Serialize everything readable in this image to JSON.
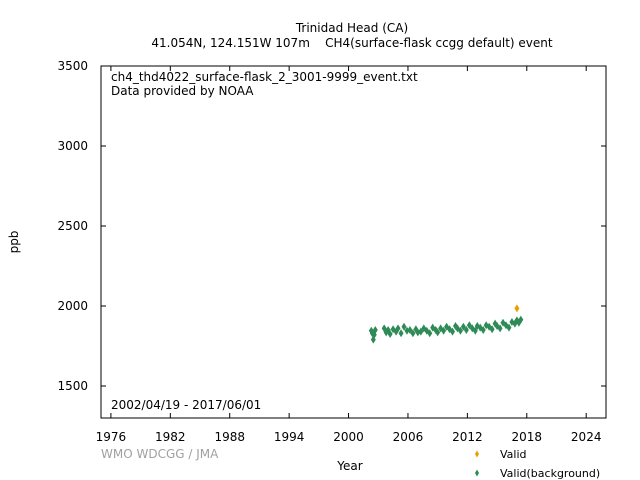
{
  "chart_data": {
    "type": "scatter",
    "title": "Trinidad Head (CA)",
    "subtitle": "41.054N, 124.151W 107m    CH4(surface-flask ccgg default) event",
    "file_note": "ch4_thd4022_surface-flask_2_3001-9999_event.txt",
    "provider_note": "Data provided by NOAA",
    "date_range": "2002/04/19 - 2017/06/01",
    "credit": "WMO WDCGG / JMA",
    "xlabel": "Year",
    "ylabel": "ppb",
    "xlim": [
      1975,
      2026
    ],
    "ylim": [
      1300,
      3500
    ],
    "x_ticks": [
      "1976",
      "1982",
      "1988",
      "1994",
      "2000",
      "2006",
      "2012",
      "2018",
      "2024"
    ],
    "y_ticks": [
      "1500",
      "2000",
      "2500",
      "3000",
      "3500"
    ],
    "legend_position": "bottom-right",
    "series": [
      {
        "name": "Valid",
        "color": "#e8a000",
        "x": [
          2017.0
        ],
        "y": [
          1985
        ]
      },
      {
        "name": "Valid(background)",
        "color": "#2e8b57",
        "x": [
          2002.3,
          2002.4,
          2002.5,
          2002.6,
          2002.7,
          2003.6,
          2003.8,
          2004.0,
          2004.2,
          2004.5,
          2004.8,
          2005.0,
          2005.3,
          2005.6,
          2005.9,
          2006.2,
          2006.5,
          2006.8,
          2007.0,
          2007.3,
          2007.6,
          2007.9,
          2008.2,
          2008.5,
          2008.8,
          2009.0,
          2009.3,
          2009.6,
          2009.9,
          2010.2,
          2010.5,
          2010.8,
          2011.0,
          2011.3,
          2011.6,
          2011.9,
          2012.2,
          2012.5,
          2012.8,
          2013.0,
          2013.3,
          2013.6,
          2013.9,
          2014.2,
          2014.5,
          2014.8,
          2015.0,
          2015.3,
          2015.6,
          2015.9,
          2016.2,
          2016.5,
          2016.8,
          2017.0,
          2017.2,
          2017.4
        ],
        "y": [
          1845,
          1830,
          1790,
          1820,
          1850,
          1860,
          1835,
          1850,
          1825,
          1855,
          1840,
          1860,
          1830,
          1870,
          1845,
          1850,
          1830,
          1855,
          1835,
          1840,
          1860,
          1845,
          1830,
          1865,
          1850,
          1835,
          1860,
          1845,
          1870,
          1855,
          1840,
          1875,
          1860,
          1845,
          1870,
          1850,
          1880,
          1860,
          1845,
          1875,
          1865,
          1850,
          1880,
          1870,
          1855,
          1890,
          1875,
          1860,
          1895,
          1880,
          1865,
          1900,
          1890,
          1910,
          1895,
          1915
        ]
      }
    ]
  }
}
